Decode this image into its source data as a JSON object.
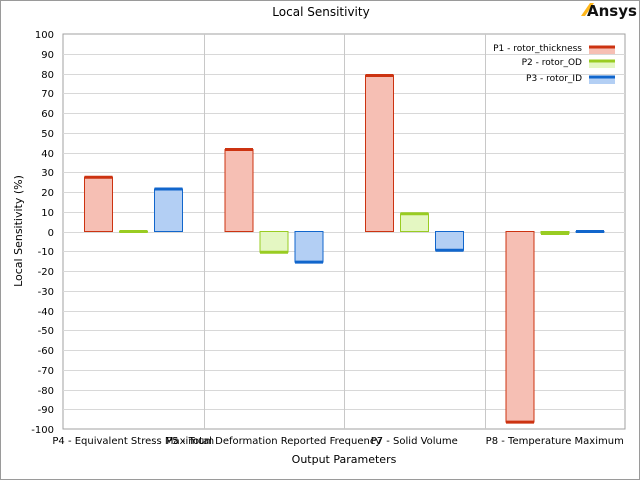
{
  "brand": {
    "logo_text": "Ansys",
    "logo_color": "#FFB71B"
  },
  "chart_data": {
    "type": "bar",
    "title": "Local Sensitivity",
    "xlabel": "Output Parameters",
    "ylabel": "Local Sensitivity (%)",
    "ylim": [
      -100,
      100
    ],
    "ytick_step": 10,
    "grid": true,
    "legend_position": "top-right",
    "categories": [
      "P4 - Equivalent Stress Maximum",
      "P5 - Total Deformation Reported Frequency",
      "P7 - Solid Volume",
      "P8 - Temperature Maximum"
    ],
    "series": [
      {
        "name": "P1 - rotor_thickness",
        "fill": "#F6BFB4",
        "edge": "#CC3311",
        "values": [
          27.5,
          41.5,
          79,
          -96.5
        ]
      },
      {
        "name": "P2 - rotor_OD",
        "fill": "#E4F7C2",
        "edge": "#99CC22",
        "values": [
          0,
          -10.5,
          9,
          -1
        ]
      },
      {
        "name": "P3 - rotor_ID",
        "fill": "#B3CFF4",
        "edge": "#1166CC",
        "values": [
          21.5,
          -15.5,
          -9.5,
          0
        ]
      }
    ]
  }
}
